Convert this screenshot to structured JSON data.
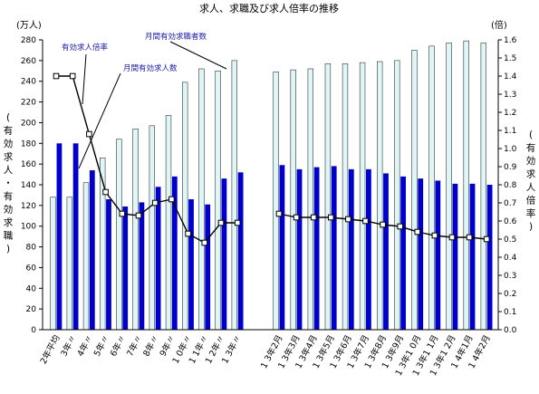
{
  "chart_data": {
    "type": "bar",
    "title": "求人、求職及び求人倍率の推移",
    "left_unit": "(万人)",
    "right_unit": "(倍)",
    "ylabel_left_chars": [
      "(",
      "有",
      "効",
      "求",
      "人",
      "・",
      "有",
      "効",
      "求",
      "職",
      ")"
    ],
    "ylabel_right_chars": [
      "(",
      "有",
      "効",
      "求",
      "人",
      "倍",
      "率",
      ")"
    ],
    "ylim_left": [
      0,
      280
    ],
    "ylim_right": [
      0,
      1.6
    ],
    "left_ticks": [
      "0",
      "20",
      "40",
      "60",
      "80",
      "100",
      "120",
      "140",
      "160",
      "180",
      "200",
      "220",
      "240",
      "260",
      "280"
    ],
    "right_ticks": [
      "0.0",
      "0.1",
      "0.2",
      "0.3",
      "0.4",
      "0.5",
      "0.6",
      "0.7",
      "0.8",
      "0.9",
      "1.0",
      "1.1",
      "1.2",
      "1.3",
      "1.4",
      "1.5",
      "1.6"
    ],
    "annual": {
      "categories": [
        "2年平均",
        "3年〃",
        "4年〃",
        "5年〃",
        "6年〃",
        "7年〃",
        "8年〃",
        "9年〃",
        "10年〃",
        "11年〃",
        "12年〃",
        "13年〃"
      ],
      "series": [
        {
          "name": "月間有効求職者数",
          "color": "#dff6f6",
          "values": [
            128,
            128,
            142,
            166,
            184,
            194,
            197,
            207,
            239,
            252,
            250,
            260
          ]
        },
        {
          "name": "月間有効求人数",
          "color": "#0000cc",
          "values": [
            180,
            180,
            154,
            126,
            119,
            123,
            138,
            148,
            126,
            121,
            146,
            152
          ]
        },
        {
          "name": "有効求人倍率",
          "color": "#000000",
          "values": [
            1.4,
            1.4,
            1.08,
            0.76,
            0.64,
            0.63,
            0.7,
            0.72,
            0.53,
            0.48,
            0.59,
            0.59
          ]
        }
      ]
    },
    "monthly": {
      "categories": [
        "13年2月",
        "13年3月",
        "13年4月",
        "13年5月",
        "13年6月",
        "13年7月",
        "13年8月",
        "13年9月",
        "13年10月",
        "13年11月",
        "13年12月",
        "14年1月",
        "14年2月"
      ],
      "series": [
        {
          "name": "月間有効求職者数",
          "color": "#dff6f6",
          "values": [
            249,
            251,
            252,
            257,
            257,
            258,
            259,
            260,
            270,
            274,
            277,
            279,
            277
          ]
        },
        {
          "name": "月間有効求人数",
          "color": "#0000cc",
          "values": [
            159,
            155,
            157,
            158,
            155,
            155,
            151,
            148,
            146,
            144,
            141,
            141,
            140
          ]
        },
        {
          "name": "有効求人倍率",
          "color": "#000000",
          "values": [
            0.64,
            0.62,
            0.62,
            0.62,
            0.61,
            0.6,
            0.58,
            0.57,
            0.54,
            0.52,
            0.51,
            0.51,
            0.5
          ]
        }
      ]
    },
    "annotations": [
      "有効求人倍率",
      "月間有効求人数",
      "月間有効求職者数"
    ],
    "x_tick_labels": [
      "2年平均",
      "3年〃",
      "4年〃",
      "5年〃",
      "6年〃",
      "7年〃",
      "8年〃",
      "9年〃",
      "1 0年〃",
      "1 1年〃",
      "1 2年〃",
      "1 3年〃",
      "1 3年2月",
      "1 3年3月",
      "1 3年4月",
      "1 3年5月",
      "1 3年6月",
      "1 3年7月",
      "1 3年8月",
      "1 3年9月",
      "1 3年1 0月",
      "1 3年1 1月",
      "1 3年1 2月",
      "1 4年1月",
      "1 4年2月"
    ],
    "grid": false,
    "legend": "none"
  }
}
